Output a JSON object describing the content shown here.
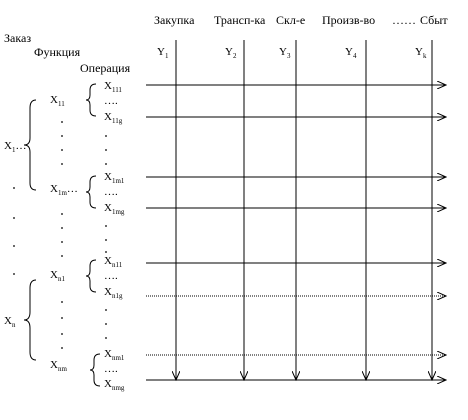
{
  "header": {
    "level_labels": [
      "Заказ",
      "Функция",
      "Операция"
    ],
    "stages": [
      "Закупка",
      "Трансп-ка",
      "Скл-е",
      "Произв-во",
      "……",
      "Сбыт"
    ]
  },
  "columns": [
    {
      "base": "Y",
      "sub": "1"
    },
    {
      "base": "Y",
      "sub": "2"
    },
    {
      "base": "Y",
      "sub": "3"
    },
    {
      "base": "Y",
      "sub": "4"
    },
    {
      "base": "Y",
      "sub": "k"
    }
  ],
  "orders": [
    {
      "base": "X",
      "sub": "1"
    },
    {
      "base": "X",
      "sub": "n"
    }
  ],
  "functions": [
    {
      "base": "X",
      "sub": "11"
    },
    {
      "base": "X",
      "sub": "1m"
    },
    {
      "base": "X",
      "sub": "n1"
    },
    {
      "base": "X",
      "sub": "nm"
    }
  ],
  "operations": [
    {
      "base": "X",
      "sub": "111"
    },
    {
      "base": "X",
      "sub": "11g"
    },
    {
      "base": "X",
      "sub": "1m1"
    },
    {
      "base": "X",
      "sub": "1mg"
    },
    {
      "base": "X",
      "sub": "n11"
    },
    {
      "base": "X",
      "sub": "n1g"
    },
    {
      "base": "X",
      "sub": "nm1"
    },
    {
      "base": "X",
      "sub": "nmg"
    }
  ],
  "ellipsis": "….",
  "ellipsis_short": "…"
}
